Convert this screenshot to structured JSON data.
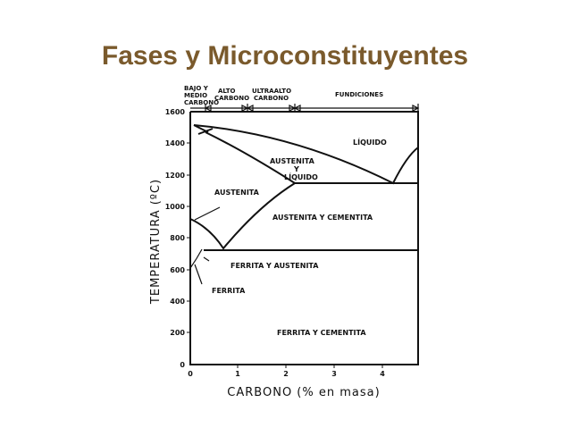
{
  "header": {
    "title": "Fases y Microconstituyentes"
  },
  "diagram": {
    "y_axis_label": "TEMPERATURA (ºC)",
    "x_axis_label": "CARBONO (% en masa)",
    "y_ticks": [
      "1600",
      "1400",
      "1200",
      "1000",
      "800",
      "600",
      "400",
      "200",
      "0"
    ],
    "x_ticks": [
      "0",
      "1",
      "2",
      "3",
      "4"
    ],
    "top_ranges": [
      [
        "BAJO Y",
        "MEDIO",
        "CARBONO"
      ],
      [
        "ALTO",
        "CARBONO"
      ],
      [
        "ULTRAALTO",
        "CARBONO"
      ],
      [
        "FUNDICIONES"
      ]
    ],
    "regions": {
      "liquido": "LÍQUIDO",
      "austenita_liquido": [
        "AUSTENITA",
        "Y",
        "LÍQUIDO"
      ],
      "austenita": "AUSTENITA",
      "austenita_cementita": "AUSTENITA Y CEMENTITA",
      "ferrita_austenita": "FERRITA Y AUSTENITA",
      "ferrita": "FERRITA",
      "ferrita_cementita": "FERRITA Y CEMENTITA"
    }
  }
}
